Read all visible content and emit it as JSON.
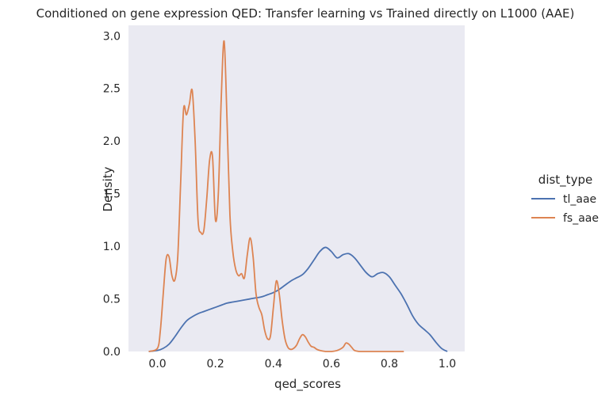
{
  "chart_data": {
    "type": "line",
    "title": "Conditioned on gene expression QED: Transfer learning vs Trained directly on L1000 (AAE)",
    "xlabel": "qed_scores",
    "ylabel": "Density",
    "xlim": [
      -0.1,
      1.06
    ],
    "ylim": [
      0,
      3.1
    ],
    "xticks": [
      0.0,
      0.2,
      0.4,
      0.6,
      0.8,
      1.0
    ],
    "xtick_labels": [
      "0.0",
      "0.2",
      "0.4",
      "0.6",
      "0.8",
      "1.0"
    ],
    "yticks": [
      0.0,
      0.5,
      1.0,
      1.5,
      2.0,
      2.5,
      3.0
    ],
    "ytick_labels": [
      "0.0",
      "0.5",
      "1.0",
      "1.5",
      "2.0",
      "2.5",
      "3.0"
    ],
    "grid": false,
    "background": "#eaeaf2",
    "legend": {
      "title": "dist_type",
      "placement": "right"
    },
    "series": [
      {
        "name": "tl_aae",
        "color": "#4c72b0",
        "x": [
          -0.03,
          0.0,
          0.02,
          0.04,
          0.06,
          0.08,
          0.1,
          0.12,
          0.14,
          0.16,
          0.18,
          0.2,
          0.22,
          0.24,
          0.26,
          0.28,
          0.3,
          0.32,
          0.34,
          0.36,
          0.38,
          0.4,
          0.42,
          0.44,
          0.46,
          0.48,
          0.5,
          0.52,
          0.54,
          0.56,
          0.58,
          0.6,
          0.62,
          0.64,
          0.66,
          0.68,
          0.7,
          0.72,
          0.74,
          0.76,
          0.78,
          0.8,
          0.82,
          0.84,
          0.86,
          0.88,
          0.9,
          0.92,
          0.94,
          0.96,
          0.98,
          1.0
        ],
        "y": [
          0.0,
          0.01,
          0.03,
          0.07,
          0.14,
          0.22,
          0.29,
          0.33,
          0.36,
          0.38,
          0.4,
          0.42,
          0.44,
          0.46,
          0.47,
          0.48,
          0.49,
          0.5,
          0.51,
          0.52,
          0.54,
          0.56,
          0.59,
          0.63,
          0.67,
          0.7,
          0.73,
          0.79,
          0.87,
          0.95,
          0.99,
          0.95,
          0.89,
          0.92,
          0.93,
          0.89,
          0.82,
          0.75,
          0.71,
          0.74,
          0.75,
          0.71,
          0.63,
          0.55,
          0.45,
          0.34,
          0.26,
          0.21,
          0.16,
          0.09,
          0.03,
          0.0
        ]
      },
      {
        "name": "fs_aae",
        "color": "#dd8452",
        "x": [
          -0.03,
          0.0,
          0.01,
          0.02,
          0.03,
          0.04,
          0.05,
          0.06,
          0.07,
          0.08,
          0.09,
          0.1,
          0.11,
          0.12,
          0.13,
          0.14,
          0.15,
          0.16,
          0.17,
          0.18,
          0.19,
          0.2,
          0.21,
          0.22,
          0.23,
          0.24,
          0.25,
          0.26,
          0.27,
          0.28,
          0.29,
          0.3,
          0.31,
          0.32,
          0.33,
          0.34,
          0.35,
          0.36,
          0.37,
          0.38,
          0.39,
          0.4,
          0.41,
          0.42,
          0.43,
          0.44,
          0.45,
          0.46,
          0.47,
          0.48,
          0.49,
          0.5,
          0.51,
          0.52,
          0.53,
          0.54,
          0.55,
          0.56,
          0.58,
          0.6,
          0.62,
          0.64,
          0.65,
          0.66,
          0.67,
          0.68,
          0.7,
          0.75,
          0.8,
          0.85
        ],
        "y": [
          0.0,
          0.03,
          0.2,
          0.55,
          0.88,
          0.9,
          0.72,
          0.68,
          0.9,
          1.6,
          2.3,
          2.25,
          2.35,
          2.48,
          2.0,
          1.25,
          1.13,
          1.15,
          1.45,
          1.82,
          1.85,
          1.25,
          1.5,
          2.4,
          2.95,
          2.2,
          1.3,
          0.95,
          0.78,
          0.72,
          0.74,
          0.7,
          0.92,
          1.08,
          0.9,
          0.55,
          0.42,
          0.35,
          0.2,
          0.12,
          0.15,
          0.42,
          0.67,
          0.55,
          0.3,
          0.12,
          0.04,
          0.02,
          0.03,
          0.06,
          0.12,
          0.16,
          0.14,
          0.09,
          0.05,
          0.04,
          0.02,
          0.01,
          0.0,
          0.0,
          0.01,
          0.04,
          0.08,
          0.07,
          0.04,
          0.01,
          0.0,
          0.0,
          0.0,
          0.0
        ]
      }
    ]
  }
}
